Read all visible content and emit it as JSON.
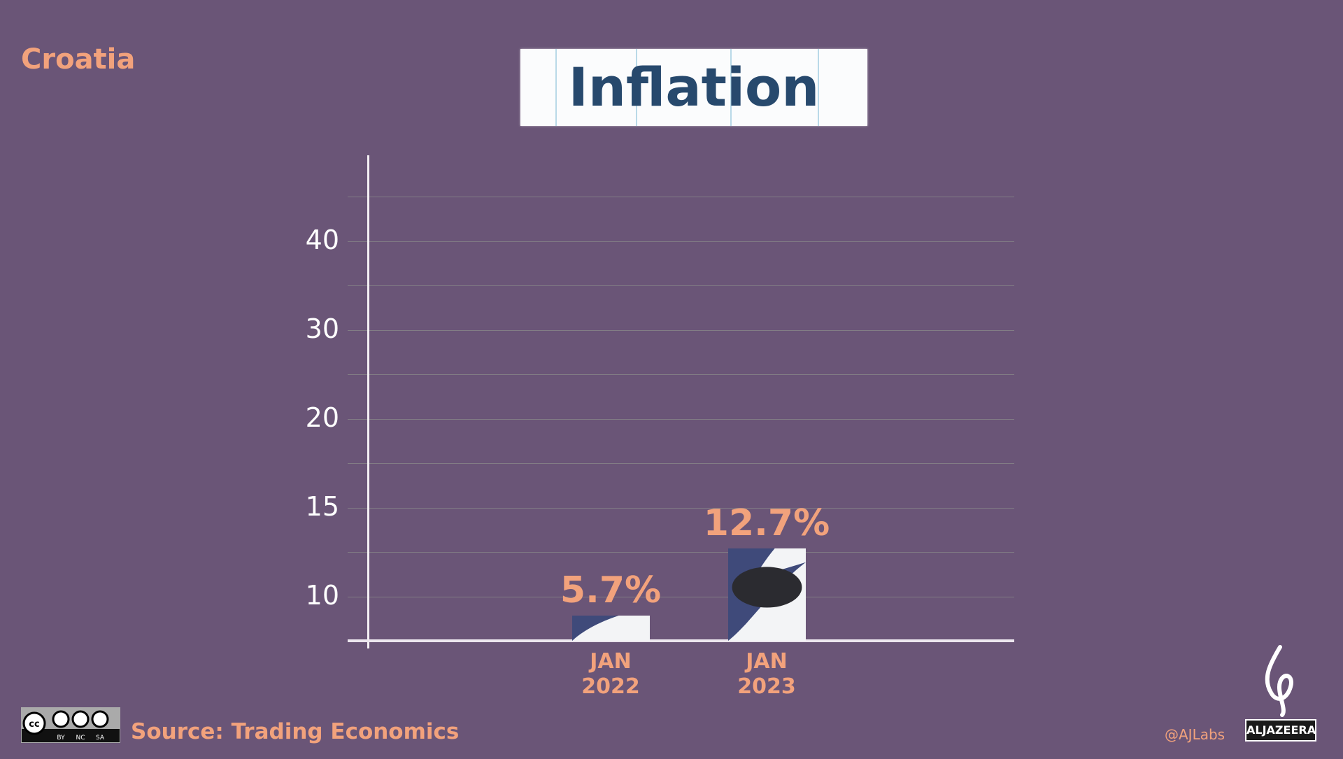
{
  "header": {
    "country": "Croatia",
    "title": "Inflation"
  },
  "chart_data": {
    "type": "bar",
    "title": "Inflation",
    "categories": [
      "JAN 2022",
      "JAN 2023"
    ],
    "category_lines": [
      [
        "JAN",
        "2022"
      ],
      [
        "JAN",
        "2023"
      ]
    ],
    "values": [
      5.7,
      12.7
    ],
    "value_labels": [
      "5.7%",
      "12.7%"
    ],
    "yticks": [
      10,
      15,
      20,
      30,
      40
    ],
    "ytick_labels": [
      "10",
      "15",
      "20",
      "30",
      "40"
    ],
    "grid": true,
    "colors": {
      "background": "#6a5577",
      "label": "#f2a27c",
      "bar_fill": "#3f4a7a",
      "bar_paper": "#f3f4f6",
      "title": "#27496d"
    }
  },
  "footer": {
    "source": "Source: Trading Economics",
    "handle": "@AJLabs",
    "license": [
      "BY",
      "NC",
      "SA"
    ],
    "logo": "ALJAZEERA"
  }
}
